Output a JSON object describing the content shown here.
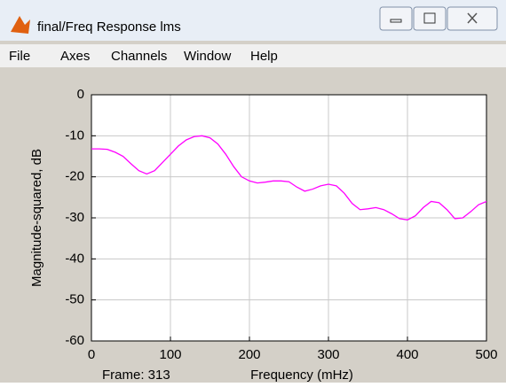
{
  "window": {
    "title": "final/Freq Response lms"
  },
  "menu": [
    "File",
    "Axes",
    "Channels",
    "Window",
    "Help"
  ],
  "status": "Frame: 313",
  "chart_data": {
    "type": "line",
    "xlabel": "Frequency (mHz)",
    "ylabel": "Magnitude-squared, dB",
    "x": [
      0,
      10,
      20,
      30,
      40,
      50,
      60,
      70,
      80,
      90,
      100,
      110,
      120,
      130,
      140,
      150,
      160,
      170,
      180,
      190,
      200,
      210,
      220,
      230,
      240,
      250,
      260,
      270,
      280,
      290,
      300,
      310,
      320,
      330,
      340,
      350,
      360,
      370,
      380,
      390,
      400,
      410,
      420,
      430,
      440,
      450,
      460,
      470,
      480,
      490,
      500
    ],
    "values": [
      -13.2,
      -13.2,
      -13.3,
      -14,
      -15,
      -16.8,
      -18.5,
      -19.3,
      -18.5,
      -16.5,
      -14.5,
      -12.5,
      -11,
      -10.2,
      -10,
      -10.5,
      -12,
      -14.5,
      -17.5,
      -20,
      -21,
      -21.5,
      -21.3,
      -21,
      -21,
      -21.2,
      -22.5,
      -23.5,
      -23,
      -22.2,
      -21.8,
      -22.2,
      -24,
      -26.5,
      -28,
      -27.8,
      -27.5,
      -28,
      -29,
      -30.2,
      -30.5,
      -29.5,
      -27.5,
      -26,
      -26.3,
      -28,
      -30.2,
      -30,
      -28.5,
      -26.8,
      -26
    ],
    "color": "#ff00ff",
    "xlim": [
      0,
      500
    ],
    "xticks": [
      0,
      100,
      200,
      300,
      400,
      500
    ],
    "ylim": [
      -60,
      0
    ],
    "yticks": [
      -60,
      -50,
      -40,
      -30,
      -20,
      -10,
      0
    ],
    "grid": true
  }
}
